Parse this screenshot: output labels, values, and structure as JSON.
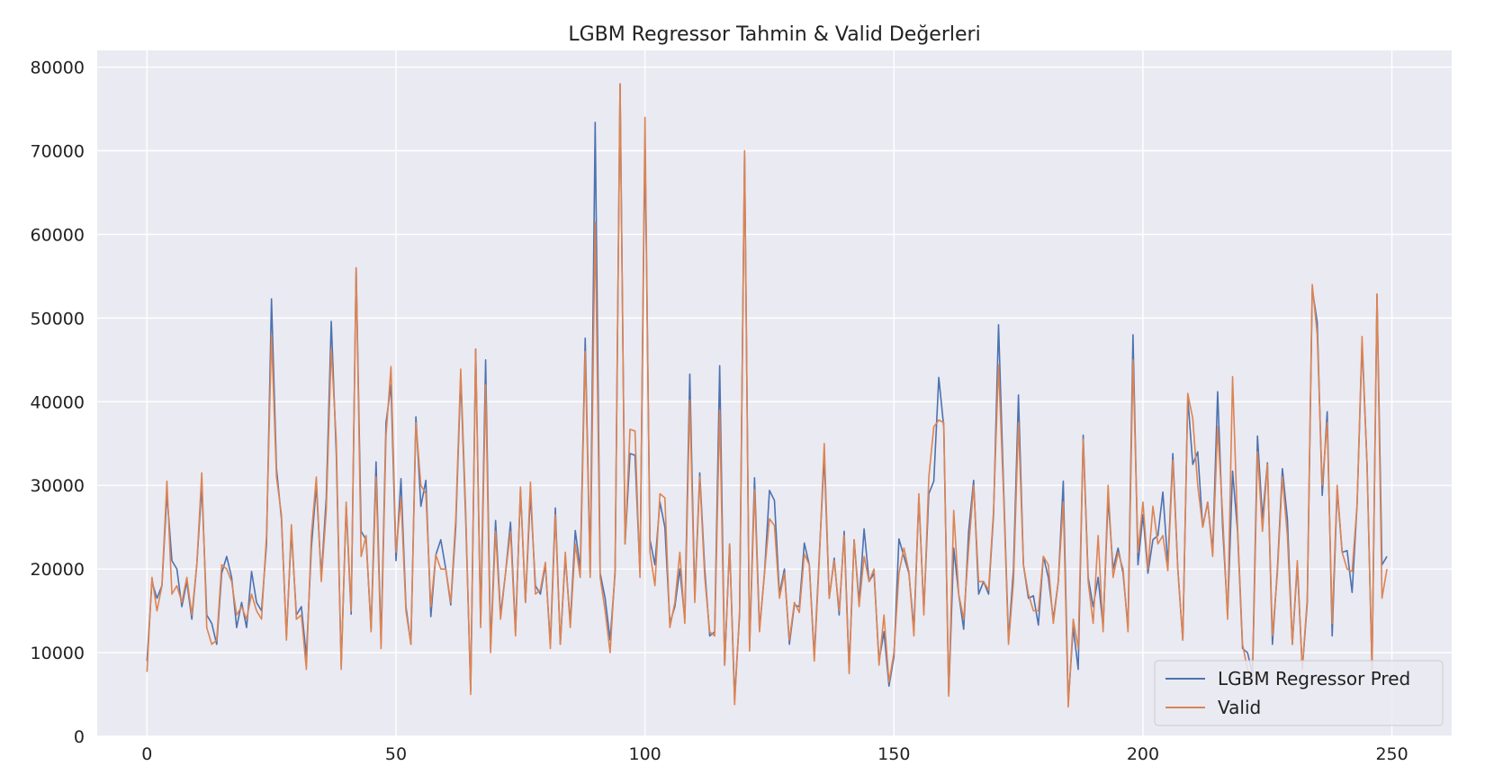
{
  "chart_data": {
    "type": "line",
    "title": "LGBM Regressor Tahmin & Valid Değerleri",
    "xlabel": "",
    "ylabel": "",
    "xlim": [
      -10,
      262
    ],
    "ylim": [
      0,
      82000
    ],
    "xticks": [
      0,
      50,
      100,
      150,
      200,
      250
    ],
    "yticks": [
      0,
      10000,
      20000,
      30000,
      40000,
      50000,
      60000,
      70000,
      80000
    ],
    "grid": true,
    "legend_position": "lower-right",
    "series": [
      {
        "name": "LGBM Regressor Pred",
        "color": "#4c72b0",
        "values": [
          9000,
          18500,
          16500,
          18000,
          29000,
          21000,
          20000,
          15500,
          18500,
          14000,
          20500,
          30000,
          14500,
          13500,
          11000,
          19500,
          21500,
          19000,
          13000,
          16000,
          13000,
          19700,
          16000,
          15000,
          23000,
          52300,
          32000,
          26000,
          12000,
          24500,
          14500,
          15500,
          9500,
          22500,
          30000,
          19000,
          28500,
          49600,
          34000,
          8500,
          27500,
          14600,
          56000,
          24500,
          23500,
          12800,
          32800,
          11200,
          37500,
          42000,
          21000,
          30800,
          15500,
          11000,
          38200,
          27500,
          30600,
          14300,
          21700,
          23500,
          20000,
          15700,
          25000,
          43000,
          26000,
          5500,
          46300,
          13500,
          45000,
          10500,
          25800,
          14500,
          19500,
          25600,
          12500,
          29500,
          16000,
          29000,
          18000,
          17000,
          20500,
          11000,
          27300,
          11000,
          21500,
          13500,
          24600,
          20000,
          47600,
          19500,
          73400,
          19500,
          16500,
          11500,
          19500,
          78000,
          23000,
          33800,
          33600,
          19500,
          71000,
          23500,
          20500,
          28000,
          25000,
          13500,
          15500,
          20000,
          14000,
          43300,
          16500,
          31500,
          20000,
          12000,
          12500,
          44300,
          8500,
          23000,
          4500,
          14500,
          69500,
          10500,
          30900,
          12800,
          19500,
          29400,
          28200,
          17000,
          20000,
          11000,
          15700,
          15500,
          23100,
          20500,
          9500,
          21500,
          33500,
          16500,
          21300,
          14500,
          24500,
          8000,
          23500,
          16000,
          24800,
          18500,
          19500,
          9000,
          12500,
          6000,
          9500,
          23600,
          21500,
          19500,
          12800,
          28500,
          15000,
          29000,
          30500,
          42900,
          37000,
          5000,
          22500,
          17000,
          12800,
          24500,
          30600,
          17000,
          18500,
          17000,
          26500,
          49200,
          30000,
          11500,
          20000,
          40800,
          20500,
          16500,
          16800,
          13300,
          21500,
          19000,
          14000,
          18500,
          30500,
          4000,
          13000,
          8000,
          36000,
          19000,
          15500,
          19000,
          13000,
          28500,
          20000,
          22500,
          19500,
          13000,
          48000,
          20500,
          26500,
          19500,
          23500,
          24000,
          29200,
          20500,
          33800,
          20000,
          11500,
          40500,
          32500,
          34000,
          25000,
          28000,
          22000,
          41200,
          25000,
          14500,
          31700,
          24500,
          10500,
          10000,
          7500,
          35900,
          26000,
          32700,
          11000,
          20000,
          32000,
          26000,
          11000,
          20500,
          8000,
          16000,
          53500,
          49500,
          28800,
          38800,
          12000,
          29500,
          22000,
          22200,
          17200,
          27700,
          47000,
          32500,
          8000,
          52800,
          20500,
          21500
        ],
        "values_note": ""
      },
      {
        "name": "Valid",
        "color": "#dd8452",
        "values": [
          7700,
          19000,
          15000,
          18000,
          30500,
          17000,
          18000,
          16000,
          19000,
          14500,
          20500,
          31500,
          13000,
          11000,
          11500,
          20500,
          20000,
          18500,
          14500,
          15500,
          14000,
          17000,
          15000,
          14000,
          24000,
          48000,
          31000,
          26500,
          11500,
          25300,
          14000,
          14500,
          8000,
          24000,
          31000,
          18500,
          27000,
          46300,
          35500,
          8000,
          28000,
          15000,
          56000,
          21500,
          24000,
          12500,
          31000,
          10500,
          36000,
          44200,
          22000,
          28500,
          15000,
          11000,
          37500,
          30000,
          29000,
          15500,
          21700,
          20000,
          20000,
          16000,
          26000,
          43900,
          27000,
          5000,
          46300,
          13000,
          42000,
          10000,
          24500,
          14000,
          19500,
          24500,
          12000,
          29800,
          16000,
          30400,
          17000,
          17500,
          20800,
          10500,
          26500,
          11000,
          22000,
          13000,
          23000,
          19000,
          46000,
          19000,
          61500,
          19000,
          15000,
          10000,
          20000,
          78000,
          23000,
          36700,
          36500,
          19000,
          74000,
          22000,
          18000,
          29000,
          28500,
          13000,
          16000,
          22000,
          13500,
          40200,
          16000,
          31000,
          19000,
          12500,
          12000,
          39000,
          8500,
          23000,
          3800,
          15000,
          70000,
          10200,
          29500,
          12500,
          19500,
          26000,
          25200,
          16500,
          19500,
          11500,
          16000,
          14800,
          21800,
          20500,
          9000,
          21000,
          35000,
          16500,
          21000,
          15000,
          24000,
          7500,
          23500,
          15500,
          21500,
          18500,
          20000,
          8500,
          14500,
          6500,
          10000,
          19500,
          22500,
          19700,
          12000,
          29000,
          14500,
          31000,
          37000,
          37800,
          37500,
          4800,
          27000,
          17000,
          14000,
          22500,
          30000,
          18500,
          18500,
          17500,
          27000,
          44400,
          29000,
          11000,
          18500,
          37500,
          20500,
          17000,
          15000,
          15000,
          21500,
          20500,
          13500,
          18500,
          28000,
          3500,
          14000,
          10500,
          35500,
          18500,
          13500,
          24000,
          12500,
          30000,
          19000,
          22000,
          20000,
          12500,
          45000,
          22000,
          28000,
          20000,
          27500,
          23000,
          24000,
          19800,
          33000,
          20000,
          11500,
          41000,
          38000,
          30000,
          25000,
          28000,
          21500,
          37000,
          26500,
          14000,
          43000,
          25000,
          11000,
          8000,
          7000,
          34000,
          24500,
          32500,
          12000,
          19500,
          31000,
          24000,
          11000,
          21000,
          8000,
          16500,
          54000,
          48000,
          30000,
          37500,
          13500,
          30000,
          22000,
          20000,
          19700,
          27700,
          47800,
          32500,
          8000,
          52900,
          16500,
          20000
        ],
        "values_note": ""
      }
    ]
  }
}
